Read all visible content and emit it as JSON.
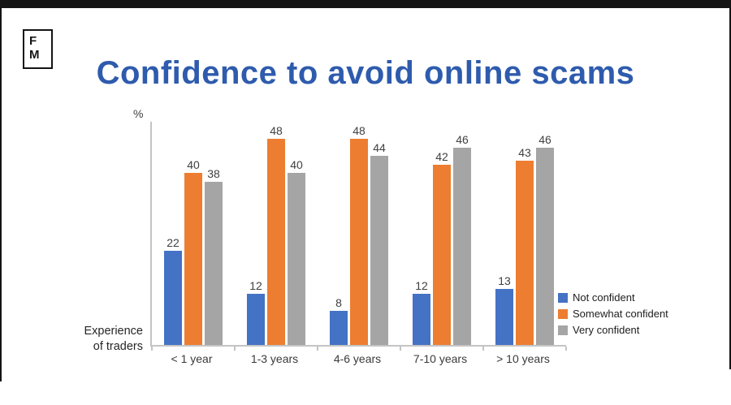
{
  "logo": {
    "top": "F",
    "bottom": "M"
  },
  "title": {
    "text": "Confidence to avoid online scams"
  },
  "y_axis": {
    "unit_label": "%"
  },
  "x_axis": {
    "label_line1": "Experience",
    "label_line2": "of traders"
  },
  "colors": {
    "title": "#2e5bad",
    "frame": "#141414",
    "axis_line": "#c4c4c4",
    "value_label": "#404040",
    "not_confident": "#4472c4",
    "somewhat_confident": "#ed7d31",
    "very_confident": "#a5a5a5"
  },
  "chart_data": {
    "type": "bar",
    "title": "Confidence to avoid online scams",
    "categories": [
      "< 1 year",
      "1-3 years",
      "4-6 years",
      "7-10 years",
      "> 10 years"
    ],
    "series": [
      {
        "name": "Not confident",
        "color": "#4472c4",
        "values": [
          22,
          12,
          8,
          12,
          13
        ]
      },
      {
        "name": "Somewhat confident",
        "color": "#ed7d31",
        "values": [
          40,
          48,
          48,
          42,
          43
        ]
      },
      {
        "name": "Very confident",
        "color": "#a5a5a5",
        "values": [
          38,
          40,
          44,
          46,
          46
        ]
      }
    ],
    "xlabel": "Experience of traders",
    "ylabel": "%",
    "ylim": [
      0,
      52
    ],
    "grid": false,
    "data_labels": true,
    "legend_position": "right-bottom"
  }
}
